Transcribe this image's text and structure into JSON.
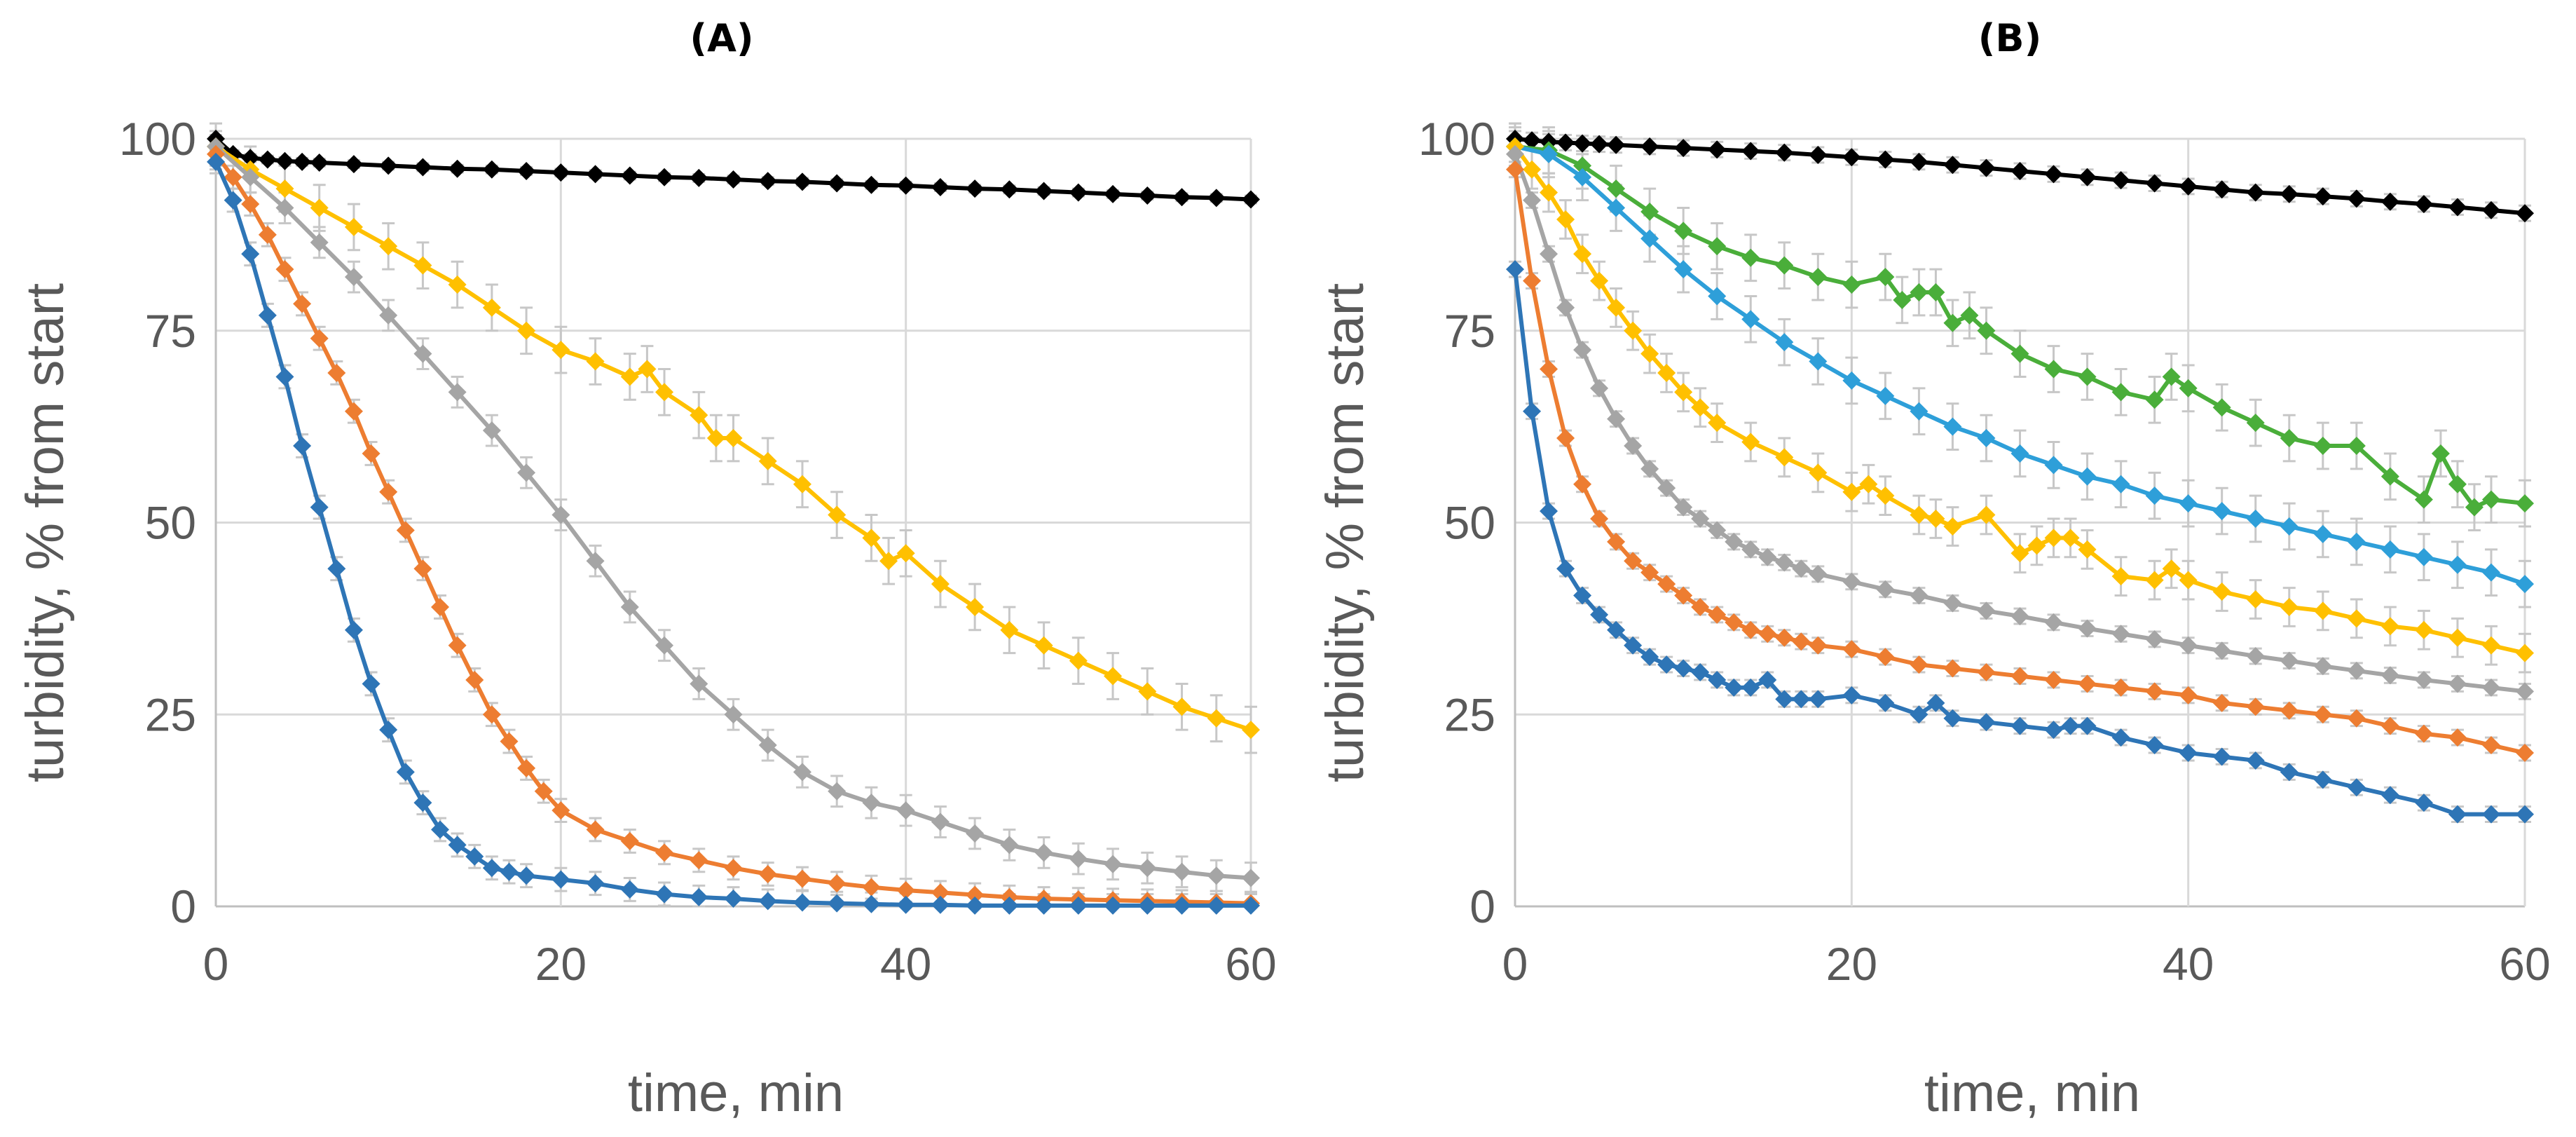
{
  "chart_data": [
    {
      "panel": "A",
      "type": "line",
      "title": "(A)",
      "xlabel": "time, min",
      "ylabel": "turbidity, % from start",
      "xlim": [
        0,
        60
      ],
      "ylim": [
        0,
        100
      ],
      "x_ticks": [
        0,
        20,
        40,
        60
      ],
      "y_ticks": [
        0,
        25,
        50,
        75,
        100
      ],
      "grid": true,
      "marker": "diamond",
      "series": [
        {
          "name": "black",
          "color": "#000000",
          "error": 0.5,
          "x": [
            0,
            1,
            2,
            3,
            4,
            5,
            6,
            8,
            10,
            12,
            14,
            16,
            18,
            20,
            22,
            24,
            26,
            28,
            30,
            32,
            34,
            36,
            38,
            40,
            42,
            44,
            46,
            48,
            50,
            52,
            54,
            56,
            58,
            60
          ],
          "values": [
            100,
            98,
            97.5,
            97.3,
            97.1,
            97,
            96.9,
            96.7,
            96.5,
            96.3,
            96.1,
            96,
            95.8,
            95.6,
            95.4,
            95.2,
            95,
            94.9,
            94.7,
            94.5,
            94.4,
            94.2,
            94,
            93.9,
            93.7,
            93.5,
            93.4,
            93.2,
            93,
            92.8,
            92.6,
            92.4,
            92.3,
            92.1
          ]
        },
        {
          "name": "gold",
          "color": "#FFC000",
          "error": 3,
          "x": [
            0,
            2,
            4,
            6,
            8,
            10,
            12,
            14,
            16,
            18,
            20,
            22,
            24,
            25,
            26,
            28,
            29,
            30,
            32,
            34,
            36,
            38,
            39,
            40,
            42,
            44,
            46,
            48,
            50,
            52,
            54,
            56,
            58,
            60
          ],
          "values": [
            99,
            96,
            93.5,
            91,
            88.5,
            86,
            83.5,
            81,
            78,
            75,
            72.5,
            71,
            69,
            70,
            67,
            64,
            61,
            61,
            58,
            55,
            51,
            48,
            45,
            46,
            42,
            39,
            36,
            34,
            32,
            30,
            28,
            26,
            24.5,
            23
          ]
        },
        {
          "name": "gray",
          "color": "#A5A5A5",
          "error": 2,
          "x": [
            0,
            2,
            4,
            6,
            8,
            10,
            12,
            14,
            16,
            18,
            20,
            22,
            24,
            26,
            28,
            30,
            32,
            34,
            36,
            38,
            40,
            42,
            44,
            46,
            48,
            50,
            52,
            54,
            56,
            58,
            60
          ],
          "values": [
            99,
            95,
            91,
            86.5,
            82,
            77,
            72,
            67,
            62,
            56.5,
            51,
            45,
            39,
            34,
            29,
            25,
            21,
            17.5,
            15,
            13.5,
            12.5,
            11,
            9.5,
            8,
            7,
            6.2,
            5.5,
            5,
            4.5,
            4,
            3.7
          ]
        },
        {
          "name": "orange",
          "color": "#ED7D31",
          "error": 1.5,
          "x": [
            0,
            1,
            2,
            3,
            4,
            5,
            6,
            7,
            8,
            9,
            10,
            11,
            12,
            13,
            14,
            15,
            16,
            17,
            18,
            19,
            20,
            22,
            24,
            26,
            28,
            30,
            32,
            34,
            36,
            38,
            40,
            42,
            44,
            46,
            48,
            50,
            52,
            54,
            56,
            58,
            60
          ],
          "values": [
            98,
            95,
            91.5,
            87.5,
            83,
            78.5,
            74,
            69.5,
            64.5,
            59,
            54,
            49,
            44,
            39,
            34,
            29.5,
            25,
            21.5,
            18,
            15,
            12.5,
            10,
            8.5,
            7,
            6,
            5,
            4.2,
            3.6,
            3,
            2.5,
            2.1,
            1.8,
            1.5,
            1.2,
            1,
            0.9,
            0.8,
            0.7,
            0.6,
            0.5,
            0.4
          ]
        },
        {
          "name": "blue",
          "color": "#2E75B6",
          "error": 1.5,
          "x": [
            0,
            1,
            2,
            3,
            4,
            5,
            6,
            7,
            8,
            9,
            10,
            11,
            12,
            13,
            14,
            15,
            16,
            17,
            18,
            20,
            22,
            24,
            26,
            28,
            30,
            32,
            34,
            36,
            38,
            40,
            42,
            44,
            46,
            48,
            50,
            52,
            54,
            56,
            58,
            60
          ],
          "values": [
            97,
            92,
            85,
            77,
            69,
            60,
            52,
            44,
            36,
            29,
            23,
            17.5,
            13.5,
            10,
            8,
            6.5,
            5,
            4.5,
            4,
            3.5,
            3,
            2.2,
            1.6,
            1.2,
            1,
            0.7,
            0.5,
            0.4,
            0.3,
            0.2,
            0.2,
            0.1,
            0.1,
            0.1,
            0.1,
            0.1,
            0.1,
            0.1,
            0.1,
            0.1
          ]
        }
      ]
    },
    {
      "panel": "B",
      "type": "line",
      "title": "(B)",
      "xlabel": "time, min",
      "ylabel": "turbidity, % from start",
      "xlim": [
        0,
        60
      ],
      "ylim": [
        0,
        100
      ],
      "x_ticks": [
        0,
        20,
        40,
        60
      ],
      "y_ticks": [
        0,
        25,
        50,
        75,
        100
      ],
      "grid": true,
      "marker": "diamond",
      "series": [
        {
          "name": "black",
          "color": "#000000",
          "error": 1,
          "x": [
            0,
            1,
            2,
            3,
            4,
            5,
            6,
            8,
            10,
            12,
            14,
            16,
            18,
            20,
            22,
            24,
            26,
            28,
            30,
            32,
            34,
            36,
            38,
            40,
            42,
            44,
            46,
            48,
            50,
            52,
            54,
            56,
            58,
            60
          ],
          "values": [
            100,
            99.8,
            99.6,
            99.5,
            99.4,
            99.3,
            99.2,
            99,
            98.8,
            98.6,
            98.4,
            98.2,
            97.9,
            97.6,
            97.3,
            97,
            96.6,
            96.2,
            95.8,
            95.4,
            95,
            94.6,
            94.2,
            93.8,
            93.4,
            93,
            92.8,
            92.5,
            92.2,
            91.8,
            91.5,
            91.1,
            90.7,
            90.3
          ]
        },
        {
          "name": "green",
          "color": "#4AAE3A",
          "error": 3,
          "x": [
            0,
            2,
            4,
            6,
            8,
            10,
            12,
            14,
            16,
            18,
            20,
            22,
            23,
            24,
            25,
            26,
            27,
            28,
            30,
            32,
            34,
            36,
            38,
            39,
            40,
            42,
            44,
            46,
            48,
            50,
            52,
            54,
            55,
            56,
            57,
            58,
            60
          ],
          "values": [
            99,
            98.5,
            96.5,
            93.5,
            90.5,
            88,
            86,
            84.5,
            83.5,
            82,
            81,
            82,
            79,
            80,
            80,
            76,
            77,
            75,
            72,
            70,
            69,
            67,
            66,
            69,
            67.5,
            65,
            63,
            61,
            60,
            60,
            56,
            53,
            59,
            55,
            52,
            53,
            52.5
          ]
        },
        {
          "name": "lightblue",
          "color": "#2E9FD9",
          "error": 3,
          "x": [
            0,
            2,
            4,
            6,
            8,
            10,
            12,
            14,
            16,
            18,
            20,
            22,
            24,
            26,
            28,
            30,
            32,
            34,
            36,
            38,
            40,
            42,
            44,
            46,
            48,
            50,
            52,
            54,
            56,
            58,
            60
          ],
          "values": [
            99,
            98,
            95,
            91,
            87,
            83,
            79.5,
            76.5,
            73.5,
            71,
            68.5,
            66.5,
            64.5,
            62.5,
            61,
            59,
            57.5,
            56,
            55,
            53.5,
            52.5,
            51.5,
            50.5,
            49.5,
            48.5,
            47.5,
            46.5,
            45.5,
            44.5,
            43.5,
            42
          ]
        },
        {
          "name": "gold",
          "color": "#FFC000",
          "error": 2.5,
          "x": [
            0,
            1,
            2,
            3,
            4,
            5,
            6,
            7,
            8,
            9,
            10,
            11,
            12,
            14,
            16,
            18,
            20,
            21,
            22,
            24,
            25,
            26,
            28,
            30,
            31,
            32,
            33,
            34,
            36,
            38,
            39,
            40,
            42,
            44,
            46,
            48,
            50,
            52,
            54,
            56,
            58,
            60
          ],
          "values": [
            99,
            96,
            93,
            89.5,
            85,
            81.5,
            78,
            75,
            72,
            69.5,
            67,
            65,
            63,
            60.5,
            58.5,
            56.5,
            54,
            55,
            53.5,
            51,
            50.5,
            49.5,
            51,
            46,
            47,
            48,
            48,
            46.5,
            43,
            42.5,
            44,
            42.5,
            41,
            40,
            39,
            38.5,
            37.5,
            36.5,
            36,
            35,
            34,
            33
          ]
        },
        {
          "name": "gray",
          "color": "#A5A5A5",
          "error": 1,
          "x": [
            0,
            1,
            2,
            3,
            4,
            5,
            6,
            7,
            8,
            9,
            10,
            11,
            12,
            13,
            14,
            15,
            16,
            17,
            18,
            20,
            22,
            24,
            26,
            28,
            30,
            32,
            34,
            36,
            38,
            40,
            42,
            44,
            46,
            48,
            50,
            52,
            54,
            56,
            58,
            60
          ],
          "values": [
            98,
            92,
            85,
            78,
            72.5,
            67.5,
            63.5,
            60,
            57,
            54.5,
            52,
            50.5,
            49,
            47.5,
            46.5,
            45.5,
            44.8,
            44,
            43.3,
            42.3,
            41.3,
            40.5,
            39.5,
            38.5,
            37.8,
            37,
            36.2,
            35.5,
            34.8,
            34,
            33.3,
            32.6,
            32,
            31.3,
            30.7,
            30.1,
            29.5,
            29,
            28.5,
            28
          ]
        },
        {
          "name": "orange",
          "color": "#ED7D31",
          "error": 1,
          "x": [
            0,
            1,
            2,
            3,
            4,
            5,
            6,
            7,
            8,
            9,
            10,
            11,
            12,
            13,
            14,
            15,
            16,
            17,
            18,
            20,
            22,
            24,
            26,
            28,
            30,
            32,
            34,
            36,
            38,
            40,
            42,
            44,
            46,
            48,
            50,
            52,
            54,
            56,
            58,
            60
          ],
          "values": [
            96,
            81.5,
            70,
            61,
            55,
            50.5,
            47.5,
            45,
            43.5,
            42,
            40.5,
            39,
            38,
            37,
            36,
            35.5,
            35,
            34.5,
            34,
            33.5,
            32.5,
            31.5,
            31,
            30.5,
            30,
            29.5,
            29,
            28.5,
            28,
            27.5,
            26.5,
            26,
            25.5,
            25,
            24.5,
            23.5,
            22.5,
            22,
            21,
            20
          ]
        },
        {
          "name": "blue",
          "color": "#2E75B6",
          "error": 1,
          "x": [
            0,
            1,
            2,
            3,
            4,
            5,
            6,
            7,
            8,
            9,
            10,
            11,
            12,
            13,
            14,
            15,
            16,
            17,
            18,
            20,
            22,
            24,
            25,
            26,
            28,
            30,
            32,
            33,
            34,
            36,
            38,
            40,
            42,
            44,
            46,
            48,
            50,
            52,
            54,
            56,
            58,
            60
          ],
          "values": [
            83,
            64.5,
            51.5,
            44,
            40.5,
            38,
            36,
            34,
            32.5,
            31.5,
            31,
            30.5,
            29.5,
            28.5,
            28.5,
            29.5,
            27,
            27,
            27,
            27.5,
            26.5,
            25,
            26.5,
            24.5,
            24,
            23.5,
            23,
            23.5,
            23.5,
            22,
            21,
            20,
            19.5,
            19,
            17.5,
            16.5,
            15.5,
            14.5,
            13.5,
            12,
            12,
            12
          ]
        }
      ]
    }
  ]
}
